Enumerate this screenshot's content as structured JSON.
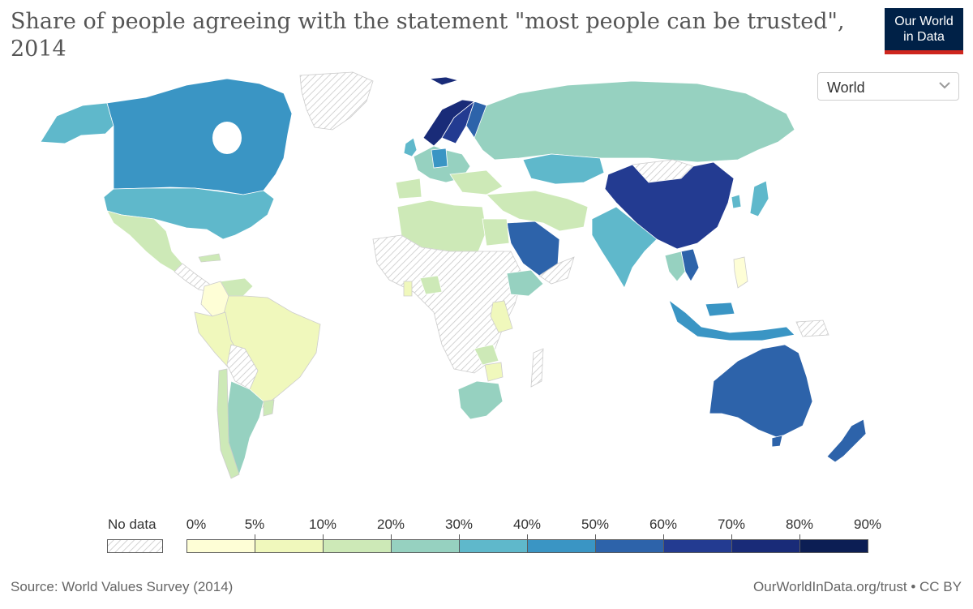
{
  "title": "Share of people agreeing with the statement \"most people can be trusted\", 2014",
  "logo": {
    "line1": "Our World",
    "line2": "in Data",
    "bg_color": "#002147",
    "accent_color": "#ce261e"
  },
  "region_selector": {
    "selected": "World",
    "icon": "chevron-down-icon"
  },
  "legend": {
    "no_data_label": "No data",
    "tick_labels": [
      "0%",
      "5%",
      "10%",
      "20%",
      "30%",
      "40%",
      "50%",
      "60%",
      "70%",
      "80%",
      "90%"
    ],
    "bins": [
      {
        "from": 0,
        "to": 5,
        "color": "#fefed6"
      },
      {
        "from": 5,
        "to": 10,
        "color": "#f0f8bc"
      },
      {
        "from": 10,
        "to": 20,
        "color": "#cde9b7"
      },
      {
        "from": 20,
        "to": 30,
        "color": "#96d1c0"
      },
      {
        "from": 30,
        "to": 40,
        "color": "#5fb8cb"
      },
      {
        "from": 40,
        "to": 50,
        "color": "#3a95c4"
      },
      {
        "from": 50,
        "to": 60,
        "color": "#2d63aa"
      },
      {
        "from": 60,
        "to": 70,
        "color": "#233b91"
      },
      {
        "from": 70,
        "to": 80,
        "color": "#192b78"
      },
      {
        "from": 80,
        "to": 90,
        "color": "#0c1e54"
      }
    ]
  },
  "map_data": [
    {
      "region": "Canada",
      "bin": "40-50%",
      "color": "#3a95c4"
    },
    {
      "region": "United States",
      "bin": "30-40%",
      "color": "#5fb8cb"
    },
    {
      "region": "Mexico",
      "bin": "10-20%",
      "color": "#cde9b7"
    },
    {
      "region": "Colombia",
      "bin": "0-5%",
      "color": "#fefed6"
    },
    {
      "region": "Brazil",
      "bin": "5-10%",
      "color": "#f0f8bc"
    },
    {
      "region": "Peru",
      "bin": "5-10%",
      "color": "#f0f8bc"
    },
    {
      "region": "Argentina",
      "bin": "20-30%",
      "color": "#96d1c0"
    },
    {
      "region": "Chile",
      "bin": "10-20%",
      "color": "#cde9b7"
    },
    {
      "region": "Uruguay",
      "bin": "10-20%",
      "color": "#cde9b7"
    },
    {
      "region": "Norway",
      "bin": "70-80%",
      "color": "#192b78"
    },
    {
      "region": "Sweden",
      "bin": "60-70%",
      "color": "#233b91"
    },
    {
      "region": "Finland",
      "bin": "50-60%",
      "color": "#2d63aa"
    },
    {
      "region": "Netherlands",
      "bin": "60-70%",
      "color": "#233b91"
    },
    {
      "region": "Germany",
      "bin": "40-50%",
      "color": "#3a95c4"
    },
    {
      "region": "Russia",
      "bin": "20-30%",
      "color": "#96d1c0"
    },
    {
      "region": "Kazakhstan",
      "bin": "30-40%",
      "color": "#5fb8cb"
    },
    {
      "region": "China",
      "bin": "60-70%",
      "color": "#233b91"
    },
    {
      "region": "Japan",
      "bin": "30-40%",
      "color": "#5fb8cb"
    },
    {
      "region": "India",
      "bin": "30-40%",
      "color": "#5fb8cb"
    },
    {
      "region": "Saudi Arabia",
      "bin": "50-60%",
      "color": "#2d63aa"
    },
    {
      "region": "Vietnam",
      "bin": "50-60%",
      "color": "#2d63aa"
    },
    {
      "region": "Indonesia",
      "bin": "40-50%",
      "color": "#3a95c4"
    },
    {
      "region": "Philippines",
      "bin": "0-5%",
      "color": "#fefed6"
    },
    {
      "region": "Australia",
      "bin": "50-60%",
      "color": "#2d63aa"
    },
    {
      "region": "New Zealand",
      "bin": "50-60%",
      "color": "#2d63aa"
    },
    {
      "region": "South Africa",
      "bin": "20-30%",
      "color": "#96d1c0"
    },
    {
      "region": "Ethiopia",
      "bin": "20-30%",
      "color": "#96d1c0"
    },
    {
      "region": "Egypt",
      "bin": "10-20%",
      "color": "#cde9b7"
    },
    {
      "region": "Algeria",
      "bin": "10-20%",
      "color": "#cde9b7"
    },
    {
      "region": "Zimbabwe",
      "bin": "5-10%",
      "color": "#f0f8bc"
    },
    {
      "region": "Rwanda",
      "bin": "5-10%",
      "color": "#f0f8bc"
    },
    {
      "region": "Nigeria",
      "bin": "10-20%",
      "color": "#cde9b7"
    },
    {
      "region": "Greenland",
      "bin": "No data",
      "color": "hatched"
    },
    {
      "region": "Mongolia",
      "bin": "No data",
      "color": "hatched"
    }
  ],
  "source": "Source: World Values Survey (2014)",
  "url": "OurWorldInData.org/trust • CC BY"
}
